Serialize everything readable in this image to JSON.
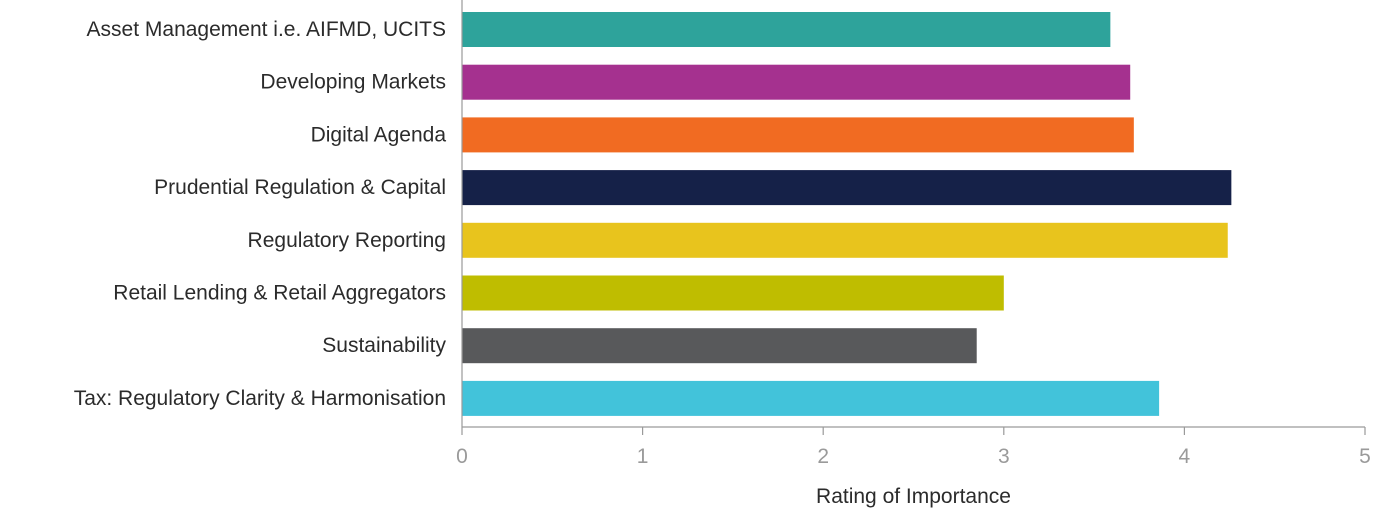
{
  "chart_data": {
    "type": "bar",
    "orientation": "horizontal",
    "title": "",
    "xlabel": "Rating of Importance",
    "ylabel": "",
    "xlim": [
      0,
      5
    ],
    "xticks": [
      "0",
      "1",
      "2",
      "3",
      "4",
      "5"
    ],
    "grid": false,
    "legend": "none",
    "categories": [
      "Asset Management i.e. AIFMD, UCITS",
      "Developing Markets",
      "Digital Agenda",
      "Prudential Regulation & Capital",
      "Regulatory Reporting",
      "Retail Lending & Retail Aggregators",
      "Sustainability",
      "Tax: Regulatory Clarity & Harmonisation"
    ],
    "values": [
      3.59,
      3.7,
      3.72,
      4.26,
      4.24,
      3.0,
      2.85,
      3.86
    ],
    "colors": [
      "#2ea39b",
      "#a5318f",
      "#f16b22",
      "#152148",
      "#e8c41d",
      "#bfbd00",
      "#58595b",
      "#42c3da"
    ]
  }
}
